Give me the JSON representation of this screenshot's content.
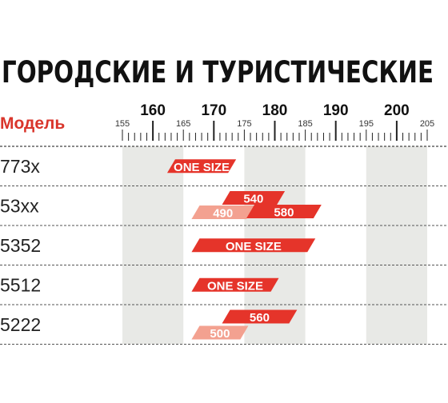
{
  "chart_data": {
    "type": "bar",
    "title": "ГОРОДСКИЕ И ТУРИСТИЧЕСКИЕ",
    "column_header": "Модель",
    "axis_unit": "",
    "xlim": [
      155,
      205
    ],
    "major_ticks": [
      160,
      170,
      180,
      190,
      200
    ],
    "minor_ticks": [
      155,
      165,
      175,
      185,
      195,
      205
    ],
    "shaded_bands": [
      [
        155,
        165
      ],
      [
        175,
        185
      ],
      [
        195,
        205
      ]
    ],
    "colors": {
      "primary": "#e5342a",
      "secondary": "#f3a190",
      "band": "#e8e9e6",
      "header": "#d9352b"
    },
    "models": [
      {
        "name": "773x",
        "sizes": [
          {
            "label": "ONE SIZE",
            "from": 163,
            "to": 173,
            "tone": "primary"
          }
        ]
      },
      {
        "name": "53xx",
        "sizes": [
          {
            "label": "540",
            "from": 172,
            "to": 181,
            "tone": "primary"
          },
          {
            "label": "490",
            "from": 167,
            "to": 176,
            "tone": "secondary"
          },
          {
            "label": "580",
            "from": 176,
            "to": 187,
            "tone": "primary"
          }
        ]
      },
      {
        "name": "5352",
        "sizes": [
          {
            "label": "ONE SIZE",
            "from": 167,
            "to": 186,
            "tone": "primary"
          }
        ]
      },
      {
        "name": "5512",
        "sizes": [
          {
            "label": "ONE SIZE",
            "from": 167,
            "to": 180,
            "tone": "primary"
          }
        ]
      },
      {
        "name": "5222",
        "sizes": [
          {
            "label": "560",
            "from": 172,
            "to": 183,
            "tone": "primary"
          },
          {
            "label": "500",
            "from": 167,
            "to": 175,
            "tone": "secondary"
          }
        ]
      }
    ]
  }
}
